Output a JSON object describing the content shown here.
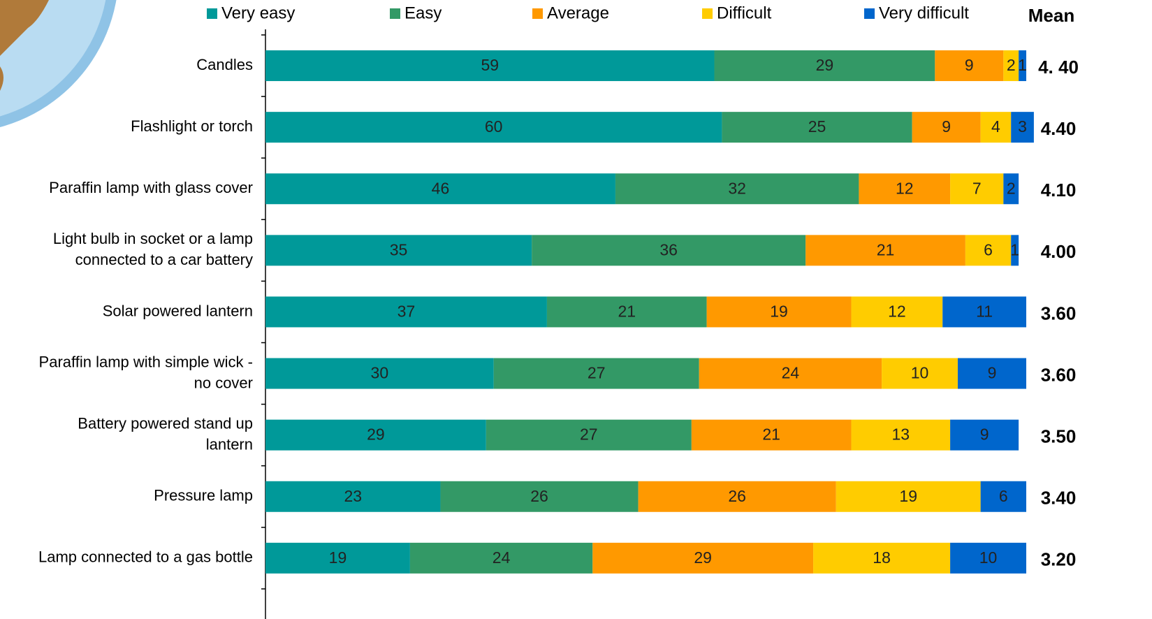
{
  "chart_data": {
    "type": "stacked_bar_horizontal",
    "categories": [
      [
        "Candles"
      ],
      [
        "Flashlight or torch"
      ],
      [
        "Paraffin lamp with glass cover"
      ],
      [
        "Light bulb in socket or a lamp",
        "connected to a car battery"
      ],
      [
        "Solar powered lantern"
      ],
      [
        "Paraffin lamp with simple wick -",
        "no cover"
      ],
      [
        "Battery powered stand up",
        "lantern"
      ],
      [
        "Pressure lamp"
      ],
      [
        "Lamp connected to a gas bottle"
      ]
    ],
    "series": [
      {
        "name": "Very easy",
        "color": "#009999",
        "values": [
          59,
          60,
          46,
          35,
          37,
          30,
          29,
          23,
          19
        ]
      },
      {
        "name": "Easy",
        "color": "#339966",
        "values": [
          29,
          25,
          32,
          36,
          21,
          27,
          27,
          26,
          24
        ]
      },
      {
        "name": "Average",
        "color": "#ff9900",
        "values": [
          9,
          9,
          12,
          21,
          19,
          24,
          21,
          26,
          29
        ]
      },
      {
        "name": "Difficult",
        "color": "#ffcc00",
        "values": [
          2,
          4,
          7,
          6,
          12,
          10,
          13,
          19,
          18
        ]
      },
      {
        "name": "Very difficult",
        "color": "#0066cc",
        "values": [
          1,
          3,
          2,
          1,
          11,
          9,
          9,
          6,
          10
        ]
      }
    ],
    "xlim": [
      0,
      100
    ],
    "mean_title": "Mean",
    "means": [
      "4. 40",
      "4.40",
      "4.10",
      "4.00",
      "3.60",
      "3.60",
      "3.50",
      "3.40",
      "3.20"
    ]
  }
}
